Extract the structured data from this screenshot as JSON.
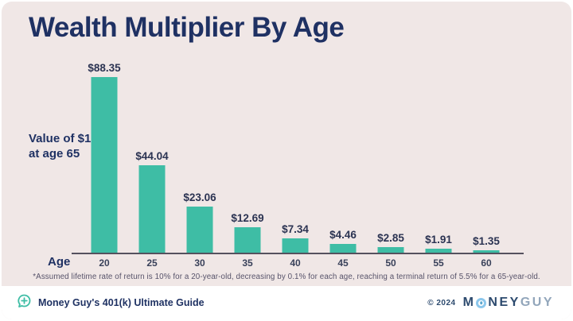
{
  "card": {
    "title": "Wealth Multiplier By Age",
    "y_annotation_line1": "Value of $1",
    "y_annotation_line2": "at age 65",
    "x_axis_label": "Age",
    "footnote": "*Assumed lifetime rate of return is 10% for a 20-year-old, decreasing by 0.1% for each age, reaching a terminal return of 5.5% for a 65-year-old."
  },
  "chart_data": {
    "type": "bar",
    "title": "Wealth Multiplier By Age",
    "categories": [
      "20",
      "25",
      "30",
      "35",
      "40",
      "45",
      "50",
      "55",
      "60"
    ],
    "values": [
      88.35,
      44.04,
      23.06,
      12.69,
      7.34,
      4.46,
      2.85,
      1.91,
      1.35
    ],
    "value_labels": [
      "$88.35",
      "$44.04",
      "$23.06",
      "$12.69",
      "$7.34",
      "$4.46",
      "$2.85",
      "$1.91",
      "$1.35"
    ],
    "xlabel": "Age",
    "ylabel": "Value of $1 at age 65",
    "ylim": [
      0,
      90
    ],
    "grid": false,
    "legend": false,
    "bar_color": "#3EBDA5"
  },
  "footer": {
    "left_text": "Money Guy's 401(k) Ultimate Guide",
    "copyright": "© 2024",
    "logo_part1": "M",
    "logo_part2": "NEY",
    "logo_part3": "GUY"
  },
  "colors": {
    "background": "#F0E7E6",
    "bar": "#3EBDA5",
    "title_navy": "#1F3163",
    "footer_bg": "#FFFFFF",
    "logo_light_blue": "#8CC7EC",
    "logo_gray_blue": "#92A6BB"
  }
}
